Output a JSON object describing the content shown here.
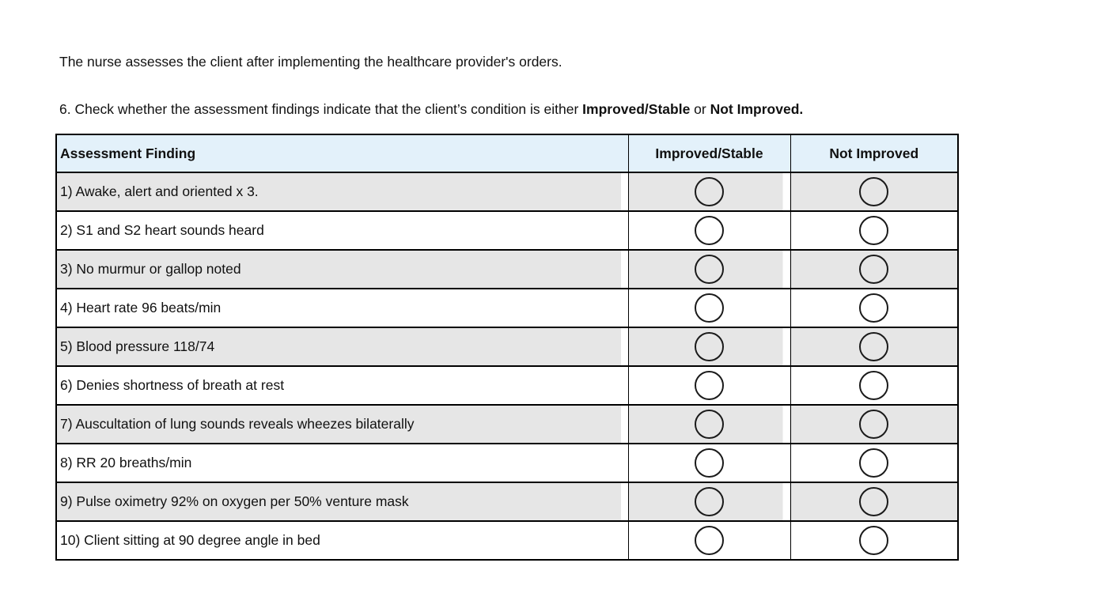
{
  "intro_text": "The nurse assesses the client after implementing the healthcare provider's orders.",
  "question": {
    "number": "6",
    "segments": [
      {
        "text": "6. Check whether the assessment findings indicate that the client’s condition is either ",
        "bold": false
      },
      {
        "text": "Improved/Stable",
        "bold": true
      },
      {
        "text": " or ",
        "bold": false
      },
      {
        "text": "Not Improved.",
        "bold": true
      }
    ]
  },
  "table": {
    "headers": [
      "Assessment Finding",
      "Improved/Stable",
      "Not Improved"
    ],
    "option_keys": [
      "improved-stable",
      "not-improved"
    ],
    "rows": [
      {
        "label": "1) Awake, alert and oriented x 3.",
        "improved_stable_checked": false,
        "not_improved_checked": false
      },
      {
        "label": "2) S1 and S2 heart sounds heard",
        "improved_stable_checked": false,
        "not_improved_checked": false
      },
      {
        "label": "3) No murmur or gallop noted",
        "improved_stable_checked": false,
        "not_improved_checked": false
      },
      {
        "label": "4) Heart rate 96 beats/min",
        "improved_stable_checked": false,
        "not_improved_checked": false
      },
      {
        "label": "5) Blood pressure 118/74",
        "improved_stable_checked": false,
        "not_improved_checked": false
      },
      {
        "label": "6) Denies shortness of breath at rest",
        "improved_stable_checked": false,
        "not_improved_checked": false
      },
      {
        "label": "7) Auscultation of lung sounds reveals wheezes bilaterally",
        "improved_stable_checked": false,
        "not_improved_checked": false
      },
      {
        "label": "8) RR 20 breaths/min",
        "improved_stable_checked": false,
        "not_improved_checked": false
      },
      {
        "label": "9) Pulse oximetry 92% on oxygen per 50% venture mask",
        "improved_stable_checked": false,
        "not_improved_checked": false
      },
      {
        "label": "10) Client sitting at 90 degree angle in bed",
        "improved_stable_checked": false,
        "not_improved_checked": false
      }
    ]
  },
  "colors": {
    "header_bg": "#e3f1fa",
    "row_alt_bg": "#e6e6e6",
    "row_bg": "#ffffff",
    "border": "#000000",
    "text": "#111111"
  }
}
